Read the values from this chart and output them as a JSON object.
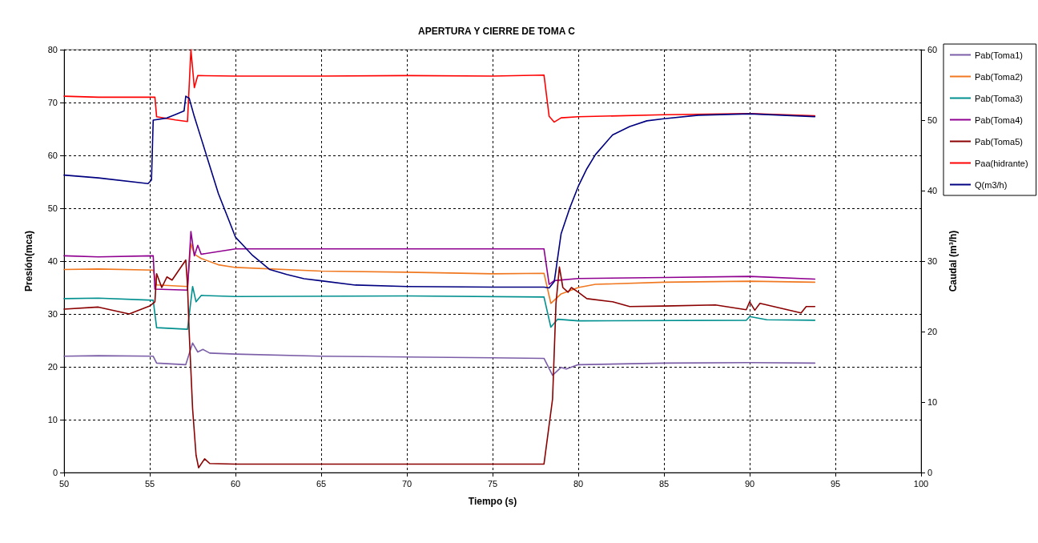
{
  "chart_data": {
    "type": "line",
    "title": "APERTURA Y CIERRE DE TOMA C",
    "xlabel": "Tiempo (s)",
    "ylabel": "Presión(mca)",
    "y2label": "Caudal (m³/h)",
    "xlim": [
      50,
      100
    ],
    "xticks": [
      50,
      55,
      60,
      65,
      70,
      75,
      80,
      85,
      90,
      95,
      100
    ],
    "ylim": [
      0,
      80
    ],
    "yticks": [
      0,
      10,
      20,
      30,
      40,
      50,
      60,
      70,
      80
    ],
    "y2lim": [
      0,
      60
    ],
    "y2ticks": [
      0,
      10,
      20,
      30,
      40,
      50,
      60
    ],
    "grid": true,
    "legend": "right",
    "marker": "none",
    "line_style": "solid",
    "series": [
      {
        "name": "Pab(Toma1)",
        "color": "#7b5ea7",
        "x": [
          50,
          52,
          55.2,
          55.4,
          57.1,
          57.5,
          57.8,
          58.1,
          58.5,
          60,
          65,
          75,
          78,
          78.5,
          79,
          79.3,
          80,
          85,
          90,
          93.8
        ],
        "values": [
          22,
          22.1,
          22,
          20.7,
          20.4,
          24.5,
          22.8,
          23.3,
          22.6,
          22.4,
          22,
          21.7,
          21.6,
          18.4,
          19.9,
          19.6,
          20.4,
          20.7,
          20.8,
          20.7
        ]
      },
      {
        "name": "Pab(Toma2)",
        "color": "#f07820",
        "x": [
          50,
          52,
          55.2,
          55.4,
          57.2,
          57.4,
          57.6,
          58,
          59,
          60,
          65,
          70,
          75,
          78,
          78.4,
          79,
          80,
          81,
          85,
          90,
          93.8
        ],
        "values": [
          38.4,
          38.5,
          38.3,
          35.5,
          35.2,
          43.3,
          41.3,
          40.5,
          39.3,
          38.8,
          38.1,
          37.9,
          37.6,
          37.7,
          32,
          33.8,
          35,
          35.6,
          36,
          36.2,
          36
        ]
      },
      {
        "name": "Pab(Toma3)",
        "color": "#00908f",
        "x": [
          50,
          52,
          55.2,
          55.4,
          57.2,
          57.5,
          57.7,
          58,
          60,
          70,
          78,
          78.4,
          78.8,
          80,
          89.8,
          90,
          91,
          93.8
        ],
        "values": [
          32.9,
          33,
          32.6,
          27.4,
          27.1,
          35.2,
          32.3,
          33.5,
          33.3,
          33.4,
          33.2,
          27.5,
          29,
          28.7,
          28.8,
          29.5,
          28.9,
          28.8
        ]
      },
      {
        "name": "Pab(Toma4)",
        "color": "#900090",
        "x": [
          50,
          52,
          55.2,
          55.3,
          57.2,
          57.4,
          57.6,
          57.8,
          58,
          60,
          65,
          75,
          78,
          78.3,
          78.6,
          80,
          85,
          90,
          93.8
        ],
        "values": [
          41,
          40.8,
          41,
          34.7,
          34.5,
          45.6,
          41,
          43,
          41.3,
          42.3,
          42.3,
          42.3,
          42.3,
          35.6,
          36.3,
          36.7,
          36.9,
          37.1,
          36.6
        ]
      },
      {
        "name": "Pab(Toma5)",
        "color": "#8b0000",
        "x": [
          50,
          52,
          53.8,
          55,
          55.3,
          55.4,
          55.7,
          56,
          56.3,
          57.1,
          57.2,
          57.3,
          57.5,
          57.7,
          57.85,
          58.2,
          58.5,
          60,
          78,
          78.5,
          78.7,
          78.9,
          79.1,
          79.4,
          79.6,
          80,
          80.5,
          82,
          83,
          85,
          88,
          89.8,
          90,
          90.3,
          90.6,
          93,
          93.3,
          93.8
        ],
        "values": [
          30.9,
          31.3,
          30,
          31.5,
          32.3,
          37.6,
          35,
          37,
          36.4,
          40.2,
          35.5,
          26.5,
          12,
          3.3,
          0.9,
          2.6,
          1.7,
          1.6,
          1.6,
          13.9,
          32,
          38.9,
          35,
          34.1,
          35,
          34.1,
          32.9,
          32.3,
          31.4,
          31.5,
          31.7,
          30.8,
          32.3,
          30.7,
          32,
          30.2,
          31.4,
          31.4
        ]
      },
      {
        "name": "Paa(hidrante)",
        "color": "#ff0000",
        "x": [
          50,
          52,
          55.3,
          55.4,
          56.5,
          57.2,
          57.4,
          57.6,
          57.8,
          60,
          65,
          70,
          75,
          78,
          78.3,
          78.6,
          79,
          80,
          85,
          90,
          93.8
        ],
        "values": [
          71.2,
          71,
          71,
          67.3,
          66.7,
          66.4,
          80,
          72.8,
          75.1,
          75,
          75,
          75.1,
          75,
          75.2,
          67.4,
          66.3,
          67.1,
          67.3,
          67.7,
          67.9,
          67.5
        ]
      },
      {
        "name": "Q(m3/h)",
        "color": "#000080",
        "axis": "y2",
        "x": [
          50,
          52,
          54.9,
          55.1,
          55.2,
          56,
          56.5,
          57,
          57.1,
          57.3,
          57.6,
          58,
          58.5,
          59,
          59.5,
          60,
          60.5,
          61,
          62,
          63,
          64,
          65,
          67,
          70,
          75,
          78,
          78.3,
          78.6,
          79,
          79.5,
          80,
          80.5,
          81,
          82,
          83,
          84,
          85,
          87,
          90,
          93.8
        ],
        "values": [
          42.2,
          41.8,
          41,
          41.5,
          50,
          50.3,
          50.8,
          51.3,
          53.4,
          53.1,
          50.5,
          47.4,
          43.5,
          39.6,
          36.5,
          33.4,
          32.1,
          30.8,
          28.8,
          28.1,
          27.5,
          27.2,
          26.6,
          26.4,
          26.3,
          26.3,
          26.2,
          27.1,
          33.9,
          37.5,
          40.6,
          43.1,
          45.1,
          47.9,
          49.1,
          49.9,
          50.2,
          50.7,
          50.9,
          50.5
        ]
      }
    ]
  }
}
